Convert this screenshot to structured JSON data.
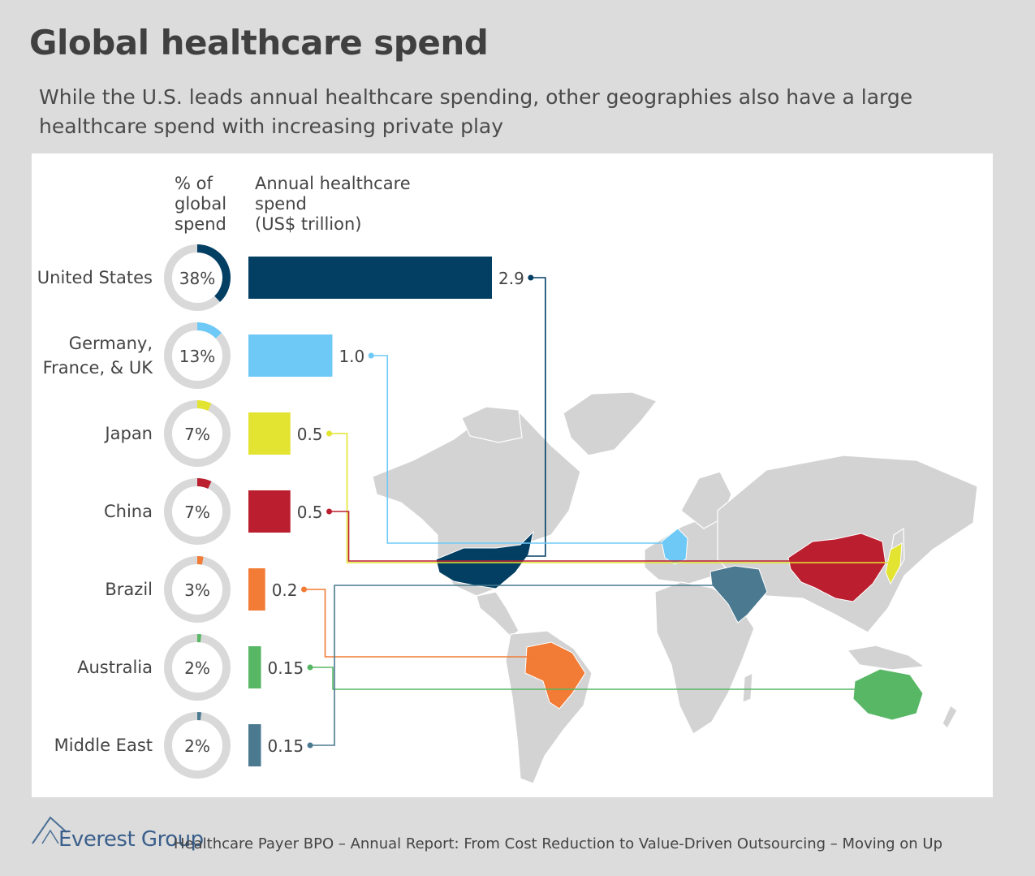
{
  "title": "Global healthcare spend",
  "subtitle": "While the U.S. leads annual healthcare spending, other geographies also have a large healthcare spend with increasing private play",
  "column_headers": {
    "share": "% of\nglobal\nspend",
    "spend": "Annual healthcare\nspend\n(US$ trillion)"
  },
  "footer": {
    "logo": "Everest Group",
    "source": "Healthcare Payer BPO – Annual Report: From Cost Reduction to Value-Driven Outsourcing – Moving on Up"
  },
  "colors": {
    "donut_track": "#d9d9d9",
    "land": "#d3d3d3",
    "land_stroke": "#ffffff"
  },
  "chart_data": {
    "type": "bar",
    "title": "Global healthcare spend",
    "xlabel": "Annual healthcare spend (US$ trillion)",
    "ylabel": "",
    "categories": [
      "United States",
      "Germany,\nFrance, & UK",
      "Japan",
      "China",
      "Brazil",
      "Australia",
      "Middle East"
    ],
    "values": [
      2.9,
      1.0,
      0.5,
      0.5,
      0.2,
      0.15,
      0.15
    ],
    "value_labels": [
      "2.9",
      "1.0",
      "0.5",
      "0.5",
      "0.2",
      "0.15",
      "0.15"
    ],
    "share_percent": [
      38,
      13,
      7,
      7,
      3,
      2,
      2
    ],
    "share_labels": [
      "38%",
      "13%",
      "7%",
      "7%",
      "3%",
      "2%",
      "2%"
    ],
    "colors": [
      "#023f63",
      "#6ec9f7",
      "#e3e332",
      "#bb1f2f",
      "#f27b35",
      "#58b765",
      "#4b7a90"
    ],
    "xlim": [
      0,
      2.9
    ]
  }
}
